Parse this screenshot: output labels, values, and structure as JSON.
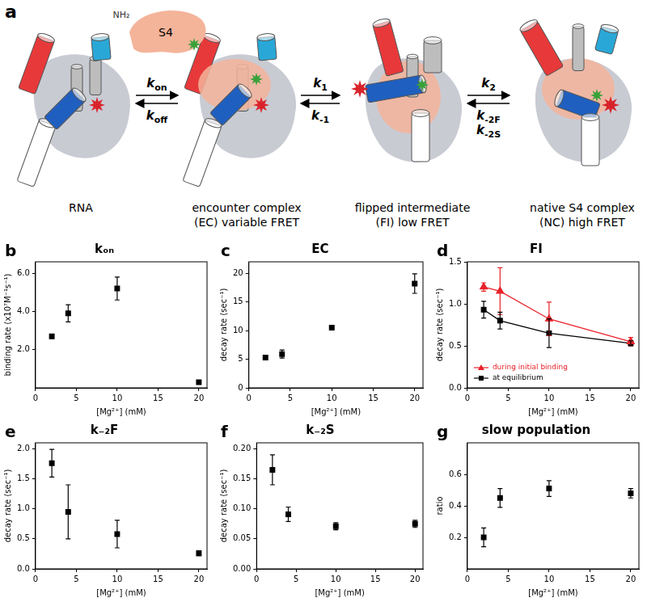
{
  "diagram": {
    "panel": "a",
    "protein": {
      "label": "S4",
      "terminus": "NH₂"
    },
    "states": [
      {
        "label": "RNA"
      },
      {
        "label": "encounter complex",
        "sublabel": "(EC) variable FRET"
      },
      {
        "label": "flipped intermediate",
        "sublabel": "(FI) low FRET"
      },
      {
        "label": "native S4 complex",
        "sublabel": "(NC) high FRET"
      }
    ],
    "steps": [
      {
        "forward": [
          [
            "k",
            "on"
          ]
        ],
        "reverse": [
          [
            "k",
            "off"
          ]
        ]
      },
      {
        "forward": [
          [
            "k",
            "1"
          ]
        ],
        "reverse": [
          [
            "k",
            "-1"
          ]
        ]
      },
      {
        "forward": [
          [
            "k",
            "2"
          ]
        ],
        "reverse": [
          [
            "k",
            "-2F"
          ],
          [
            "k",
            "-2S"
          ]
        ]
      }
    ]
  },
  "chart_data": [
    {
      "panel": "b",
      "type": "scatter",
      "title": "kₒₙ",
      "x_label": "[Mg²⁺] (mM)",
      "y_label": "binding rate (x10⁷M⁻¹s⁻¹)",
      "x": [
        2,
        4,
        10,
        20
      ],
      "xlim": [
        0,
        21
      ],
      "xticks": [
        0,
        5,
        10,
        15,
        20
      ],
      "ylim": [
        0,
        6.6
      ],
      "yticks": [
        {
          "value": 2,
          "label": "2.0"
        },
        {
          "value": 4,
          "label": "4.0"
        },
        {
          "value": 6,
          "label": "6.0"
        }
      ],
      "grid": false,
      "marker": "square",
      "color": "#000000",
      "values": [
        2.7,
        3.9,
        5.2,
        0.3
      ],
      "errors": [
        0.1,
        0.45,
        0.6,
        0.05
      ]
    },
    {
      "panel": "c",
      "type": "scatter",
      "title": "EC",
      "x_label": "[Mg²⁺] (mM)",
      "y_label": "decay rate (sec⁻¹)",
      "x": [
        2,
        4,
        10,
        20
      ],
      "xlim": [
        0,
        21
      ],
      "xticks": [
        0,
        5,
        10,
        15,
        20
      ],
      "ylim": [
        0,
        22
      ],
      "yticks": [
        0,
        5,
        10,
        15,
        20
      ],
      "grid": false,
      "marker": "square",
      "color": "#000000",
      "values": [
        5.3,
        5.9,
        10.5,
        18.2
      ],
      "errors": [
        0.4,
        0.7,
        0.2,
        1.7
      ]
    },
    {
      "panel": "d",
      "type": "scatter",
      "title": "FI",
      "x_label": "[Mg²⁺] (mM)",
      "y_label": "decay rate (sec⁻¹)",
      "x": [
        2,
        4,
        10,
        20
      ],
      "xlim": [
        0,
        21
      ],
      "xticks": [
        0,
        5,
        10,
        15,
        20
      ],
      "ylim": [
        0,
        1.5
      ],
      "yticks": [
        {
          "value": 0,
          "label": "0.0"
        },
        {
          "value": 0.5,
          "label": "0.5"
        },
        {
          "value": 1,
          "label": "1.0"
        },
        {
          "value": 1.5,
          "label": "1.5"
        }
      ],
      "grid": false,
      "legend": "lower left",
      "series": [
        {
          "name": "during initial binding",
          "color": "#e8222a",
          "marker": "triangle",
          "line_style": "solid",
          "values": [
            1.2,
            1.15,
            0.82,
            0.55
          ],
          "errors": [
            0.05,
            0.28,
            0.2,
            0.05
          ]
        },
        {
          "name": "at equilibrium",
          "color": "#000000",
          "marker": "square",
          "line_style": "solid",
          "values": [
            0.93,
            0.8,
            0.65,
            0.53
          ],
          "errors": [
            0.1,
            0.1,
            0.17,
            0.03
          ]
        }
      ]
    },
    {
      "panel": "e",
      "type": "scatter",
      "title": "k₋₂F",
      "x_label": "[Mg²⁺] (mM)",
      "y_label": "decay rate (sec⁻¹)",
      "x": [
        2,
        4,
        10,
        20
      ],
      "xlim": [
        0,
        21
      ],
      "xticks": [
        0,
        5,
        10,
        15,
        20
      ],
      "ylim": [
        0,
        2.1
      ],
      "yticks": [
        {
          "value": 0,
          "label": "0.0"
        },
        {
          "value": 0.5,
          "label": "0.5"
        },
        {
          "value": 1,
          "label": "1.0"
        },
        {
          "value": 1.5,
          "label": "1.5"
        },
        {
          "value": 2,
          "label": "2.0"
        }
      ],
      "grid": false,
      "marker": "square",
      "color": "#000000",
      "values": [
        1.76,
        0.95,
        0.58,
        0.26
      ],
      "errors": [
        0.23,
        0.45,
        0.23,
        0.04
      ]
    },
    {
      "panel": "f",
      "type": "scatter",
      "title": "k₋₂S",
      "x_label": "[Mg²⁺] (mM)",
      "y_label": "decay rate (sec⁻¹)",
      "x": [
        2,
        4,
        10,
        20
      ],
      "xlim": [
        0,
        21
      ],
      "xticks": [
        0,
        5,
        10,
        15,
        20
      ],
      "ylim": [
        0,
        0.21
      ],
      "yticks": [
        {
          "value": 0,
          "label": "0.00"
        },
        {
          "value": 0.05,
          "label": "0.05"
        },
        {
          "value": 0.1,
          "label": "0.10"
        },
        {
          "value": 0.15,
          "label": "0.15"
        },
        {
          "value": 0.2,
          "label": "0.20"
        }
      ],
      "grid": false,
      "marker": "square",
      "color": "#000000",
      "values": [
        0.165,
        0.091,
        0.071,
        0.075
      ],
      "errors": [
        0.025,
        0.012,
        0.006,
        0.006
      ]
    },
    {
      "panel": "g",
      "type": "scatter",
      "title": "slow population",
      "x_label": "[Mg²⁺] (mM)",
      "y_label": "ratio",
      "x": [
        2,
        4,
        10,
        20
      ],
      "xlim": [
        0,
        21
      ],
      "xticks": [
        0,
        5,
        10,
        15,
        20
      ],
      "ylim": [
        0,
        0.8
      ],
      "yticks": [
        0.2,
        0.4,
        0.6
      ],
      "grid": false,
      "marker": "square",
      "color": "#000000",
      "values": [
        0.2,
        0.45,
        0.51,
        0.48
      ],
      "errors": [
        0.06,
        0.06,
        0.05,
        0.03
      ]
    }
  ]
}
